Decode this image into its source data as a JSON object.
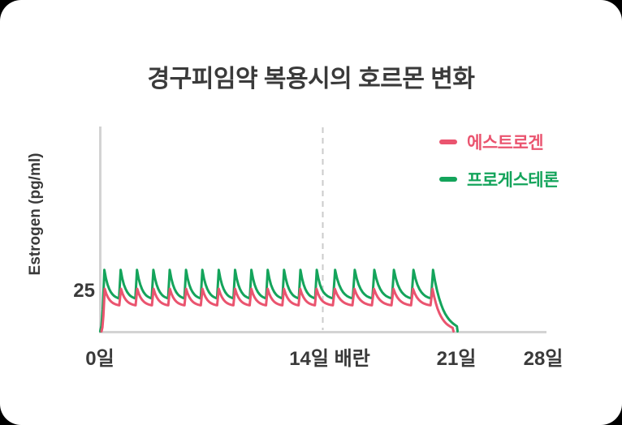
{
  "title": "경구피임약 복용시의 호르몬 변화",
  "chart_data": {
    "type": "line",
    "title": "경구피임약 복용시의 호르몬 변화",
    "ylabel": "Estrogen (pg/ml)",
    "xlabel": "",
    "ylim": [
      0,
      130
    ],
    "grid": false,
    "legend_position": "top-right",
    "y_ticks": [
      {
        "value": 25,
        "label": "25"
      }
    ],
    "x_ticks": [
      {
        "day": 0,
        "label": "0일"
      },
      {
        "day": 14,
        "label": "14일 배란"
      },
      {
        "day": 21,
        "label": "21일"
      },
      {
        "day": 28,
        "label": "28일"
      }
    ],
    "ovulation_marker_day": 14,
    "series": [
      {
        "name": "프로게스테론",
        "color": "#14a45b",
        "pattern": "daily-sawtooth",
        "peak_value": 39,
        "trough_value": 20,
        "n_peaks": 20,
        "first_peak_day": 0.28,
        "last_peak_day": 19.78,
        "rise_start_day": 0.02,
        "end_day": 21.1
      },
      {
        "name": "에스트로겐",
        "color": "#ea546f",
        "pattern": "daily-sawtooth",
        "peak_value": 27,
        "trough_value": 16,
        "n_peaks": 20,
        "first_peak_day": 0.3,
        "last_peak_day": 19.75,
        "rise_start_day": 0.1,
        "end_day": 20.85
      }
    ]
  }
}
